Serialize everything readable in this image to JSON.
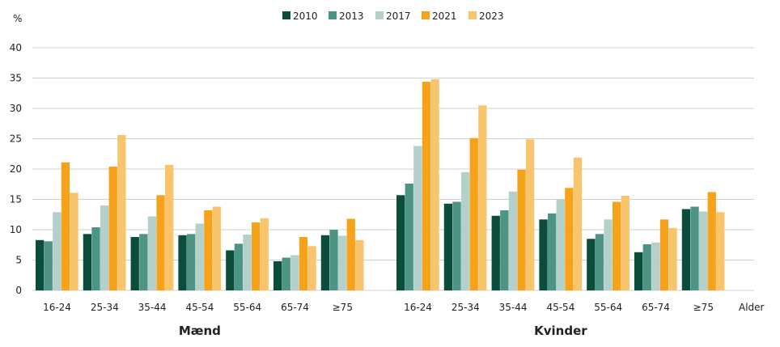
{
  "chart_data": {
    "type": "bar",
    "ylabel": "%",
    "xlabel": "Alder",
    "ylim": [
      0,
      40
    ],
    "yticks": [
      0,
      5,
      10,
      15,
      20,
      25,
      30,
      35,
      40
    ],
    "grid": true,
    "legend_placement": "top-center",
    "categories": [
      "16-24",
      "25-34",
      "35-44",
      "45-54",
      "55-64",
      "65-74",
      "≥75"
    ],
    "groups": [
      {
        "label": "Mænd",
        "series": [
          {
            "name": "2010",
            "values": [
              8.3,
              9.3,
              8.8,
              9.1,
              6.6,
              4.8,
              9.1
            ]
          },
          {
            "name": "2013",
            "values": [
              8.1,
              10.4,
              9.3,
              9.3,
              7.7,
              5.4,
              10.0
            ]
          },
          {
            "name": "2017",
            "values": [
              12.9,
              14.0,
              12.2,
              11.0,
              9.2,
              5.8,
              9.0
            ]
          },
          {
            "name": "2021",
            "values": [
              21.1,
              20.4,
              15.7,
              13.2,
              11.2,
              8.8,
              11.8
            ]
          },
          {
            "name": "2023",
            "values": [
              16.1,
              25.6,
              20.7,
              13.8,
              11.9,
              7.3,
              8.3
            ]
          }
        ]
      },
      {
        "label": "Kvinder",
        "series": [
          {
            "name": "2010",
            "values": [
              15.7,
              14.3,
              12.3,
              11.7,
              8.5,
              6.3,
              13.4
            ]
          },
          {
            "name": "2013",
            "values": [
              17.6,
              14.6,
              13.2,
              12.7,
              9.3,
              7.6,
              13.8
            ]
          },
          {
            "name": "2017",
            "values": [
              23.8,
              19.5,
              16.3,
              15.0,
              11.7,
              7.9,
              13.0
            ]
          },
          {
            "name": "2021",
            "values": [
              34.4,
              25.1,
              19.9,
              16.9,
              14.6,
              11.7,
              16.2
            ]
          },
          {
            "name": "2023",
            "values": [
              34.8,
              30.5,
              24.9,
              21.9,
              15.6,
              10.3,
              12.9
            ]
          }
        ]
      }
    ],
    "colors": {
      "2010": "#0a4d3a",
      "2013": "#4e9485",
      "2017": "#b4d0cb",
      "2021": "#f6a31b",
      "2023": "#f9c56c"
    },
    "gridColor": "#d0d0d0"
  }
}
